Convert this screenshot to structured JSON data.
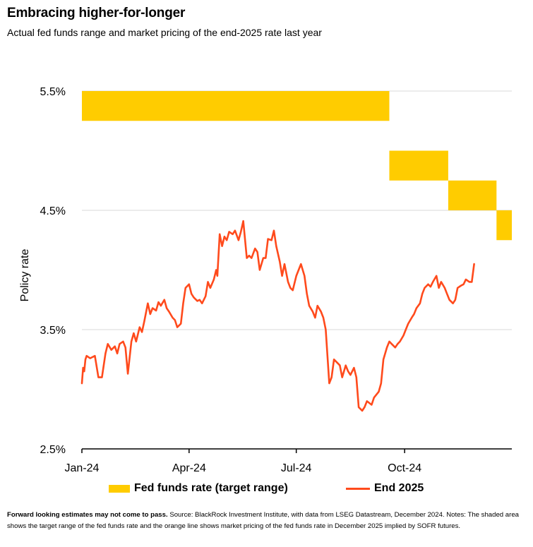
{
  "header": {
    "title": "Embracing higher-for-longer",
    "subtitle": "Actual fed funds range and market pricing of the end-2025 rate last year"
  },
  "footnote": {
    "bold": "Forward looking estimates may not come to pass.",
    "text": " Source: BlackRock Investment Institute, with data from LSEG Datastream, December 2024. Notes: The shaded area shows the target range of the fed funds rate and the orange line shows market pricing of the fed funds rate in December 2025 implied by SOFR futures."
  },
  "colors": {
    "band": "#ffcc00",
    "line": "#ff4a1c",
    "grid": "#d9d9d9",
    "axis": "#000000"
  },
  "chart_data": {
    "type": "line",
    "title": "",
    "xlabel": "",
    "ylabel": "Policy rate",
    "ylim": [
      2.5,
      5.5
    ],
    "xlim": [
      "2024-01-01",
      "2024-12-31"
    ],
    "y_ticks": [
      2.5,
      3.5,
      4.5,
      5.5
    ],
    "y_tick_labels": [
      "2.5%",
      "3.5%",
      "4.5%",
      "5.5%"
    ],
    "x_ticks": [
      "2024-01-01",
      "2024-04-01",
      "2024-07-01",
      "2024-10-01"
    ],
    "x_tick_labels": [
      "Jan-24",
      "Apr-24",
      "Jul-24",
      "Oct-24"
    ],
    "grid": true,
    "legend_position": "bottom",
    "band_series": {
      "name": "Fed funds rate (target range)",
      "segments": [
        {
          "start": "2024-01-01",
          "end": "2024-09-18",
          "lower": 5.25,
          "upper": 5.5
        },
        {
          "start": "2024-09-18",
          "end": "2024-11-07",
          "lower": 4.75,
          "upper": 5.0
        },
        {
          "start": "2024-11-07",
          "end": "2024-12-18",
          "lower": 4.5,
          "upper": 4.75
        },
        {
          "start": "2024-12-18",
          "end": "2024-12-31",
          "lower": 4.25,
          "upper": 4.5
        }
      ]
    },
    "line_series": {
      "name": "End 2025",
      "points": [
        [
          "2024-01-01",
          3.05
        ],
        [
          "2024-01-02",
          3.18
        ],
        [
          "2024-01-03",
          3.15
        ],
        [
          "2024-01-04",
          3.25
        ],
        [
          "2024-01-05",
          3.28
        ],
        [
          "2024-01-08",
          3.26
        ],
        [
          "2024-01-10",
          3.27
        ],
        [
          "2024-01-12",
          3.28
        ],
        [
          "2024-01-15",
          3.1
        ],
        [
          "2024-01-18",
          3.1
        ],
        [
          "2024-01-21",
          3.3
        ],
        [
          "2024-01-23",
          3.38
        ],
        [
          "2024-01-26",
          3.33
        ],
        [
          "2024-01-29",
          3.36
        ],
        [
          "2024-01-31",
          3.3
        ],
        [
          "2024-02-02",
          3.38
        ],
        [
          "2024-02-05",
          3.4
        ],
        [
          "2024-02-07",
          3.35
        ],
        [
          "2024-02-09",
          3.13
        ],
        [
          "2024-02-12",
          3.4
        ],
        [
          "2024-02-14",
          3.47
        ],
        [
          "2024-02-16",
          3.4
        ],
        [
          "2024-02-19",
          3.52
        ],
        [
          "2024-02-21",
          3.48
        ],
        [
          "2024-02-23",
          3.57
        ],
        [
          "2024-02-26",
          3.72
        ],
        [
          "2024-02-28",
          3.63
        ],
        [
          "2024-03-01",
          3.68
        ],
        [
          "2024-03-04",
          3.66
        ],
        [
          "2024-03-06",
          3.73
        ],
        [
          "2024-03-08",
          3.7
        ],
        [
          "2024-03-11",
          3.75
        ],
        [
          "2024-03-13",
          3.68
        ],
        [
          "2024-03-15",
          3.65
        ],
        [
          "2024-03-18",
          3.6
        ],
        [
          "2024-03-20",
          3.58
        ],
        [
          "2024-03-22",
          3.52
        ],
        [
          "2024-03-25",
          3.55
        ],
        [
          "2024-03-27",
          3.72
        ],
        [
          "2024-03-29",
          3.85
        ],
        [
          "2024-04-01",
          3.88
        ],
        [
          "2024-04-03",
          3.8
        ],
        [
          "2024-04-05",
          3.77
        ],
        [
          "2024-04-08",
          3.74
        ],
        [
          "2024-04-10",
          3.75
        ],
        [
          "2024-04-12",
          3.72
        ],
        [
          "2024-04-15",
          3.78
        ],
        [
          "2024-04-17",
          3.9
        ],
        [
          "2024-04-19",
          3.85
        ],
        [
          "2024-04-22",
          3.92
        ],
        [
          "2024-04-24",
          4.0
        ],
        [
          "2024-04-25",
          3.95
        ],
        [
          "2024-04-27",
          4.3
        ],
        [
          "2024-04-29",
          4.2
        ],
        [
          "2024-05-01",
          4.28
        ],
        [
          "2024-05-03",
          4.25
        ],
        [
          "2024-05-05",
          4.32
        ],
        [
          "2024-05-08",
          4.3
        ],
        [
          "2024-05-10",
          4.33
        ],
        [
          "2024-05-13",
          4.25
        ],
        [
          "2024-05-15",
          4.32
        ],
        [
          "2024-05-17",
          4.41
        ],
        [
          "2024-05-20",
          4.1
        ],
        [
          "2024-05-22",
          4.12
        ],
        [
          "2024-05-24",
          4.1
        ],
        [
          "2024-05-27",
          4.18
        ],
        [
          "2024-05-29",
          4.15
        ],
        [
          "2024-05-31",
          4.0
        ],
        [
          "2024-06-03",
          4.1
        ],
        [
          "2024-06-05",
          4.1
        ],
        [
          "2024-06-07",
          4.26
        ],
        [
          "2024-06-10",
          4.25
        ],
        [
          "2024-06-12",
          4.33
        ],
        [
          "2024-06-14",
          4.2
        ],
        [
          "2024-06-17",
          4.07
        ],
        [
          "2024-06-19",
          3.95
        ],
        [
          "2024-06-21",
          4.05
        ],
        [
          "2024-06-24",
          3.9
        ],
        [
          "2024-06-26",
          3.85
        ],
        [
          "2024-06-28",
          3.83
        ],
        [
          "2024-07-01",
          3.95
        ],
        [
          "2024-07-03",
          4.0
        ],
        [
          "2024-07-05",
          4.05
        ],
        [
          "2024-07-08",
          3.95
        ],
        [
          "2024-07-10",
          3.8
        ],
        [
          "2024-07-12",
          3.7
        ],
        [
          "2024-07-15",
          3.65
        ],
        [
          "2024-07-17",
          3.6
        ],
        [
          "2024-07-19",
          3.7
        ],
        [
          "2024-07-22",
          3.65
        ],
        [
          "2024-07-24",
          3.6
        ],
        [
          "2024-07-26",
          3.5
        ],
        [
          "2024-07-29",
          3.05
        ],
        [
          "2024-07-31",
          3.1
        ],
        [
          "2024-08-02",
          3.25
        ],
        [
          "2024-08-05",
          3.22
        ],
        [
          "2024-08-07",
          3.2
        ],
        [
          "2024-08-09",
          3.1
        ],
        [
          "2024-08-12",
          3.2
        ],
        [
          "2024-08-14",
          3.15
        ],
        [
          "2024-08-16",
          3.12
        ],
        [
          "2024-08-19",
          3.18
        ],
        [
          "2024-08-21",
          3.1
        ],
        [
          "2024-08-23",
          2.85
        ],
        [
          "2024-08-26",
          2.82
        ],
        [
          "2024-08-28",
          2.85
        ],
        [
          "2024-08-30",
          2.9
        ],
        [
          "2024-09-03",
          2.87
        ],
        [
          "2024-09-05",
          2.93
        ],
        [
          "2024-09-09",
          2.98
        ],
        [
          "2024-09-11",
          3.05
        ],
        [
          "2024-09-13",
          3.25
        ],
        [
          "2024-09-16",
          3.35
        ],
        [
          "2024-09-18",
          3.4
        ],
        [
          "2024-09-20",
          3.38
        ],
        [
          "2024-09-23",
          3.35
        ],
        [
          "2024-09-25",
          3.38
        ],
        [
          "2024-09-27",
          3.4
        ],
        [
          "2024-09-30",
          3.45
        ],
        [
          "2024-10-02",
          3.5
        ],
        [
          "2024-10-04",
          3.55
        ],
        [
          "2024-10-07",
          3.6
        ],
        [
          "2024-10-09",
          3.63
        ],
        [
          "2024-10-11",
          3.68
        ],
        [
          "2024-10-14",
          3.72
        ],
        [
          "2024-10-16",
          3.8
        ],
        [
          "2024-10-18",
          3.85
        ],
        [
          "2024-10-21",
          3.88
        ],
        [
          "2024-10-23",
          3.86
        ],
        [
          "2024-10-25",
          3.9
        ],
        [
          "2024-10-28",
          3.95
        ],
        [
          "2024-10-30",
          3.85
        ],
        [
          "2024-11-01",
          3.9
        ],
        [
          "2024-11-04",
          3.85
        ],
        [
          "2024-11-06",
          3.8
        ],
        [
          "2024-11-08",
          3.75
        ],
        [
          "2024-11-11",
          3.72
        ],
        [
          "2024-11-13",
          3.75
        ],
        [
          "2024-11-15",
          3.85
        ],
        [
          "2024-11-18",
          3.87
        ],
        [
          "2024-11-20",
          3.88
        ],
        [
          "2024-11-22",
          3.92
        ],
        [
          "2024-11-25",
          3.9
        ],
        [
          "2024-11-27",
          3.9
        ],
        [
          "2024-11-29",
          4.05
        ]
      ]
    }
  }
}
